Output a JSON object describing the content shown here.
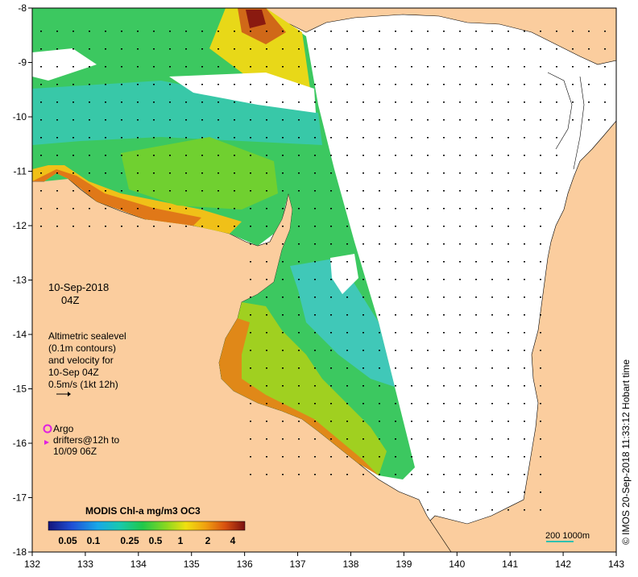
{
  "map": {
    "lat_ticks": [
      "-8",
      "-9",
      "-10",
      "-11",
      "-12",
      "-13",
      "-14",
      "-15",
      "-16",
      "-17",
      "-18"
    ],
    "lon_ticks": [
      "132",
      "133",
      "134",
      "135",
      "136",
      "137",
      "138",
      "139",
      "140",
      "141",
      "142",
      "143"
    ],
    "date_line1": "10-Sep-2018",
    "date_line2": "04Z",
    "altimetry_lines": [
      "Altimetric sealevel",
      "(0.1m contours)",
      "and velocity for",
      "10-Sep 04Z"
    ],
    "velocity_scale": "0.5m/s (1kt 12h)",
    "argo_label": "Argo",
    "drifters_line1": "drifters@12h to",
    "drifters_line2": "10/09 06Z",
    "colorbar_title": "MODIS Chl-a mg/m3 OC3",
    "colorbar_ticks": [
      "0.05",
      "0.1",
      "0.25",
      "0.5",
      "1",
      "2",
      "4"
    ],
    "colorbar_colors": [
      "#1a1a8c",
      "#1f4fd6",
      "#18a7e8",
      "#18c8b0",
      "#20c84a",
      "#8ad820",
      "#f0e010",
      "#f0a010",
      "#e06010",
      "#b02010",
      "#7a1010"
    ],
    "depth_scale": "200  1000m",
    "credit": "© IMOS 20-Sep-2018 11:33:12 Hobart time",
    "land_color": "#fbcd9e",
    "argo_color": "#e020e0"
  }
}
